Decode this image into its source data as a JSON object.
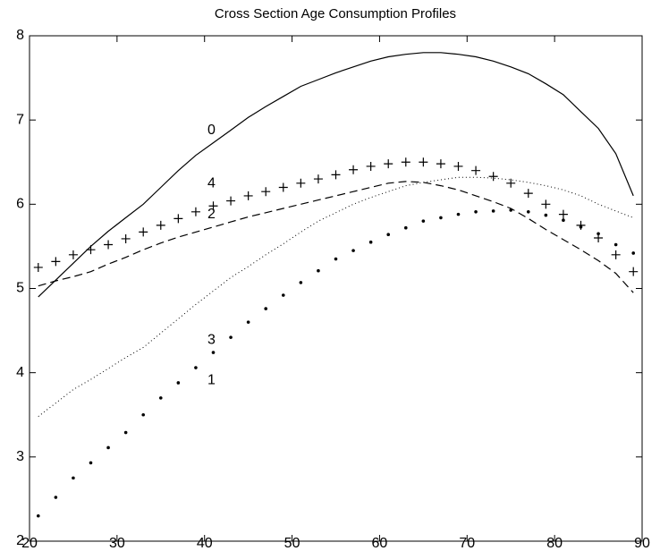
{
  "chart_data": {
    "type": "line",
    "title": "Cross Section Age Consumption Profiles",
    "x": [
      21,
      23,
      25,
      27,
      29,
      31,
      33,
      35,
      37,
      39,
      41,
      43,
      45,
      47,
      49,
      51,
      53,
      55,
      57,
      59,
      61,
      63,
      65,
      67,
      69,
      71,
      73,
      75,
      77,
      79,
      81,
      83,
      85,
      87,
      89
    ],
    "series": [
      {
        "name": "0",
        "color": "#000000",
        "style": "solid",
        "values": [
          4.9,
          5.1,
          5.3,
          5.5,
          5.68,
          5.84,
          6.0,
          6.2,
          6.4,
          6.58,
          6.73,
          6.88,
          7.03,
          7.16,
          7.28,
          7.4,
          7.48,
          7.56,
          7.63,
          7.7,
          7.75,
          7.78,
          7.8,
          7.8,
          7.78,
          7.75,
          7.7,
          7.63,
          7.55,
          7.43,
          7.3,
          7.1,
          6.9,
          6.6,
          6.1
        ]
      },
      {
        "name": "1",
        "color": "#000000",
        "style": "dots",
        "values": [
          2.3,
          2.52,
          2.75,
          2.93,
          3.11,
          3.29,
          3.5,
          3.7,
          3.88,
          4.06,
          4.24,
          4.42,
          4.6,
          4.76,
          4.92,
          5.07,
          5.21,
          5.35,
          5.45,
          5.55,
          5.64,
          5.72,
          5.8,
          5.84,
          5.88,
          5.91,
          5.92,
          5.93,
          5.91,
          5.87,
          5.81,
          5.73,
          5.65,
          5.52,
          5.42
        ]
      },
      {
        "name": "2",
        "color": "#000000",
        "style": "dashed",
        "values": [
          5.03,
          5.09,
          5.14,
          5.2,
          5.29,
          5.37,
          5.46,
          5.54,
          5.61,
          5.67,
          5.73,
          5.79,
          5.85,
          5.9,
          5.95,
          6.0,
          6.05,
          6.1,
          6.15,
          6.2,
          6.25,
          6.27,
          6.26,
          6.22,
          6.17,
          6.1,
          6.03,
          5.95,
          5.83,
          5.7,
          5.58,
          5.46,
          5.33,
          5.18,
          4.95
        ]
      },
      {
        "name": "3",
        "color": "#000000",
        "style": "dotted",
        "values": [
          3.48,
          3.64,
          3.8,
          3.92,
          4.05,
          4.18,
          4.3,
          4.47,
          4.64,
          4.81,
          4.97,
          5.13,
          5.26,
          5.4,
          5.53,
          5.67,
          5.8,
          5.9,
          6.0,
          6.08,
          6.15,
          6.22,
          6.26,
          6.29,
          6.32,
          6.32,
          6.31,
          6.29,
          6.26,
          6.22,
          6.17,
          6.1,
          6.0,
          5.92,
          5.84
        ]
      },
      {
        "name": "4",
        "color": "#000000",
        "style": "plus",
        "values": [
          5.25,
          5.32,
          5.4,
          5.46,
          5.52,
          5.59,
          5.67,
          5.75,
          5.83,
          5.91,
          5.98,
          6.04,
          6.1,
          6.15,
          6.2,
          6.25,
          6.3,
          6.35,
          6.41,
          6.45,
          6.48,
          6.5,
          6.5,
          6.48,
          6.45,
          6.4,
          6.33,
          6.25,
          6.13,
          6.0,
          5.88,
          5.75,
          5.6,
          5.4,
          5.2
        ]
      }
    ],
    "xlim": [
      20,
      90
    ],
    "ylim": [
      2,
      8
    ],
    "xticks": [
      20,
      30,
      40,
      50,
      60,
      70,
      80,
      90
    ],
    "yticks": [
      2,
      3,
      4,
      5,
      6,
      7,
      8
    ],
    "grid": false
  }
}
